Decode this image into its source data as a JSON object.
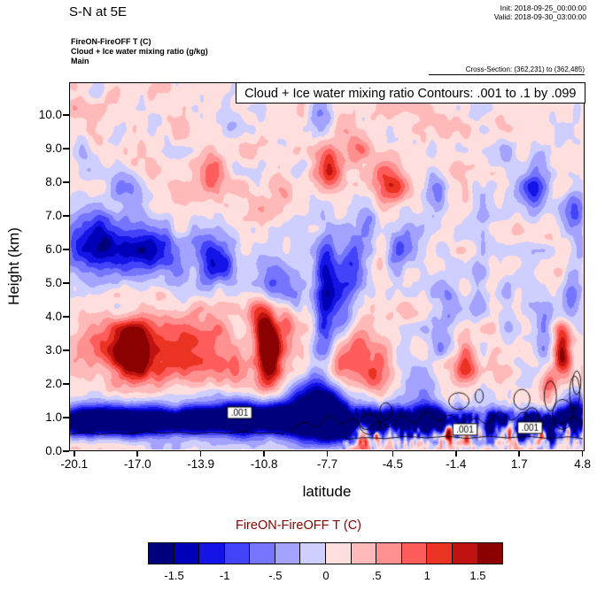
{
  "page_title": "S-N at 5E",
  "header": {
    "init": "Init: 2018-09-25_00:00:00",
    "valid": "Valid: 2018-09-30_03:00:00"
  },
  "subheader": {
    "line1": "FireON-FireOFF T   (C)",
    "line2": "Cloud + Ice water mixing ratio   (g/kg)",
    "line3": "Main",
    "cross_section": "Cross-Section: (362,231) to (362,485)"
  },
  "plot": {
    "inner_title": "Cloud + Ice water mixing ratio Contours: .001 to .1 by .099",
    "xlabel": "latitude",
    "ylabel": "Height (km)",
    "x_ticks": [
      "-20.1",
      "-17.0",
      "-13.9",
      "-10.8",
      "-7.7",
      "-4.5",
      "-1.4",
      "1.7",
      "4.8"
    ],
    "x_tick_values": [
      -20.1,
      -17.0,
      -13.9,
      -10.8,
      -7.7,
      -4.5,
      -1.4,
      1.7,
      4.8
    ],
    "y_ticks": [
      "0.0",
      "1.0",
      "2.0",
      "3.0",
      "4.0",
      "5.0",
      "6.0",
      "7.0",
      "8.0",
      "9.0",
      "10.0"
    ],
    "y_tick_values": [
      0,
      1,
      2,
      3,
      4,
      5,
      6,
      7,
      8,
      9,
      10
    ]
  },
  "colorbar": {
    "title": "FireON-FireOFF T  (C)",
    "title_color": "#8b0000",
    "labels": [
      "-1.5",
      "-1",
      "-.5",
      "0",
      ".5",
      "1",
      "1.5"
    ],
    "colors": [
      "#00007d",
      "#0000b8",
      "#1414e6",
      "#4343fa",
      "#7575ff",
      "#a3a3ff",
      "#cfcfff",
      "#ffdede",
      "#ffb9b9",
      "#ff9090",
      "#ff5c5c",
      "#ea3323",
      "#c11212",
      "#8b0000"
    ]
  },
  "chart_data": {
    "type": "heatmap",
    "title": "Cloud + Ice water mixing ratio Contours: .001 to .1 by .099",
    "subtitle": "FireON-FireOFF T (C) difference cross-section S-N at 5E",
    "xlabel": "latitude",
    "ylabel": "Height (km)",
    "x_range": [
      -20.35,
      4.9
    ],
    "y_range": [
      0,
      10.97
    ],
    "colorbar_title": "FireON-FireOFF T  (C)",
    "colorbar_ticks": [
      "-1.5",
      "-1",
      "-.5",
      "0",
      ".5",
      "1",
      "1.5"
    ],
    "levels": {
      "min": -1.75,
      "max": 1.75,
      "step": 0.25
    },
    "base": 0.15,
    "blobs": [
      [
        -19.8,
        0.85,
        -1.9,
        0.8,
        0.3
      ],
      [
        -18.6,
        0.8,
        -1.5,
        0.8,
        0.28
      ],
      [
        -17.2,
        0.85,
        -1.9,
        0.8,
        0.32
      ],
      [
        -15.8,
        0.8,
        -1.3,
        0.8,
        0.26
      ],
      [
        -14.4,
        0.85,
        -1.7,
        0.8,
        0.3
      ],
      [
        -13.0,
        0.9,
        -1.5,
        0.8,
        0.3
      ],
      [
        -11.6,
        0.95,
        -1.8,
        0.8,
        0.33
      ],
      [
        -10.2,
        0.9,
        -1.5,
        0.7,
        0.3
      ],
      [
        -9.0,
        0.9,
        -1.9,
        0.7,
        0.4
      ],
      [
        -8.2,
        1.3,
        -1.7,
        0.6,
        0.7
      ],
      [
        -7.5,
        0.9,
        -2.1,
        0.5,
        0.45
      ],
      [
        -6.8,
        0.7,
        -1.6,
        0.4,
        0.3
      ],
      [
        -6.0,
        0.9,
        -1.4,
        0.5,
        0.3
      ],
      [
        -5.2,
        0.8,
        -1.6,
        0.5,
        0.3
      ],
      [
        -4.3,
        0.9,
        -1.5,
        0.5,
        0.3
      ],
      [
        -3.4,
        0.85,
        -1.4,
        0.5,
        0.28
      ],
      [
        -2.5,
        0.9,
        -1.8,
        0.4,
        0.3
      ],
      [
        -1.6,
        0.85,
        -1.5,
        0.5,
        0.28
      ],
      [
        -0.7,
        0.9,
        -1.3,
        0.4,
        0.25
      ],
      [
        0.3,
        0.6,
        -1.9,
        0.2,
        0.25
      ],
      [
        0.8,
        0.95,
        -1.4,
        0.5,
        0.25
      ],
      [
        1.9,
        0.4,
        -1.7,
        0.15,
        0.2
      ],
      [
        2.2,
        0.85,
        -1.5,
        0.6,
        0.25
      ],
      [
        2.6,
        0.8,
        -1.6,
        0.2,
        0.2
      ],
      [
        3.3,
        0.5,
        -1.8,
        0.15,
        0.25
      ],
      [
        3.8,
        0.9,
        -1.7,
        0.6,
        0.3
      ],
      [
        4.4,
        0.8,
        -1.6,
        0.2,
        0.3
      ],
      [
        4.7,
        1.1,
        -1.2,
        0.3,
        0.4
      ],
      [
        -12.0,
        1.0,
        -0.5,
        8.0,
        0.55
      ],
      [
        -16.8,
        3.0,
        1.0,
        2.2,
        0.75
      ],
      [
        -17.3,
        2.9,
        1.3,
        0.6,
        0.5
      ],
      [
        -14.0,
        3.1,
        0.6,
        0.9,
        0.6
      ],
      [
        -12.6,
        2.4,
        0.5,
        0.6,
        0.5
      ],
      [
        -11.0,
        3.8,
        1.0,
        0.4,
        0.4
      ],
      [
        -10.6,
        2.7,
        1.3,
        0.45,
        0.7
      ],
      [
        -10.55,
        3.2,
        1.5,
        0.3,
        0.5
      ],
      [
        -9.7,
        3.8,
        0.8,
        0.35,
        0.45
      ],
      [
        -6.4,
        2.8,
        0.8,
        0.9,
        0.6
      ],
      [
        -5.3,
        2.1,
        0.6,
        0.5,
        0.4
      ],
      [
        -0.9,
        2.6,
        1.0,
        0.35,
        0.5
      ],
      [
        3.9,
        2.9,
        1.6,
        0.3,
        0.5
      ],
      [
        3.2,
        1.9,
        0.8,
        0.3,
        0.4
      ],
      [
        -18.9,
        6.1,
        -1.4,
        1.2,
        0.65
      ],
      [
        -16.4,
        5.9,
        -1.0,
        0.9,
        0.55
      ],
      [
        -16.5,
        6.0,
        -0.4,
        3.0,
        0.9
      ],
      [
        -13.1,
        5.7,
        -1.2,
        0.7,
        0.6
      ],
      [
        -10.4,
        5.0,
        -0.6,
        0.5,
        0.5
      ],
      [
        -9.3,
        4.6,
        -0.6,
        0.5,
        0.5
      ],
      [
        -7.7,
        5.1,
        -1.3,
        0.4,
        1.0
      ],
      [
        -7.9,
        3.6,
        -0.9,
        0.35,
        0.8
      ],
      [
        -6.9,
        4.1,
        -0.8,
        0.4,
        0.6
      ],
      [
        -6.5,
        5.6,
        -0.9,
        0.45,
        0.8
      ],
      [
        -5.7,
        6.6,
        -0.7,
        0.35,
        0.6
      ],
      [
        -4.3,
        5.8,
        -0.8,
        0.4,
        0.5
      ],
      [
        -3.6,
        6.3,
        -0.5,
        0.4,
        0.5
      ],
      [
        -3.0,
        2.2,
        -0.6,
        0.6,
        0.6
      ],
      [
        -2.2,
        3.4,
        -0.5,
        0.4,
        0.5
      ],
      [
        -1.8,
        4.3,
        -0.7,
        0.5,
        0.6
      ],
      [
        -0.2,
        4.8,
        -0.6,
        0.35,
        0.7
      ],
      [
        0.0,
        6.3,
        -0.5,
        0.4,
        0.6
      ],
      [
        1.2,
        3.8,
        -0.5,
        0.3,
        0.8
      ],
      [
        2.2,
        5.1,
        -0.4,
        0.3,
        0.6
      ],
      [
        3.0,
        3.6,
        -0.5,
        0.3,
        0.7
      ],
      [
        4.3,
        4.6,
        -0.6,
        0.3,
        0.6
      ],
      [
        4.7,
        5.8,
        -0.5,
        0.3,
        0.5
      ],
      [
        -19.6,
        8.6,
        -0.5,
        0.4,
        0.4
      ],
      [
        -17.8,
        7.9,
        -0.6,
        0.5,
        0.4
      ],
      [
        -13.3,
        8.3,
        0.8,
        0.45,
        0.45
      ],
      [
        -12.2,
        9.7,
        -0.4,
        0.5,
        0.4
      ],
      [
        -10.0,
        7.4,
        0.4,
        0.5,
        0.4
      ],
      [
        -8.0,
        9.8,
        -0.6,
        0.4,
        0.5
      ],
      [
        -7.6,
        8.4,
        1.1,
        0.5,
        0.45
      ],
      [
        -6.2,
        9.1,
        0.5,
        0.5,
        0.4
      ],
      [
        -4.6,
        8.0,
        0.9,
        0.6,
        0.5
      ],
      [
        -2.4,
        7.6,
        -0.8,
        0.45,
        0.5
      ],
      [
        1.0,
        8.9,
        -0.5,
        0.4,
        0.4
      ],
      [
        2.4,
        7.7,
        -1.2,
        0.55,
        0.6
      ],
      [
        4.5,
        7.3,
        -0.9,
        0.4,
        0.5
      ],
      [
        -5.9,
        0.5,
        2.0,
        0.18,
        0.25
      ],
      [
        -5.2,
        0.4,
        1.5,
        0.15,
        0.2
      ],
      [
        -4.5,
        0.6,
        1.4,
        0.12,
        0.2
      ],
      [
        -1.7,
        0.45,
        1.8,
        0.15,
        0.25
      ],
      [
        -0.8,
        0.35,
        1.2,
        0.1,
        0.15
      ],
      [
        0.1,
        0.4,
        1.0,
        0.1,
        0.15
      ],
      [
        1.3,
        0.5,
        1.5,
        0.12,
        0.2
      ],
      [
        2.8,
        0.45,
        1.3,
        0.1,
        0.15
      ],
      [
        4.2,
        0.5,
        1.5,
        0.12,
        0.2
      ]
    ],
    "noise": [
      {
        "amp": 0.26,
        "sx": 1.0,
        "sy": 0.6,
        "seed": 11
      },
      {
        "amp": 0.16,
        "sx": 0.42,
        "sy": 0.33,
        "seed": 29
      }
    ],
    "bottom_noise": {
      "amp": 0.85,
      "km_center": 0.5,
      "km_sigma": 0.42,
      "lat_min": -7.0,
      "sx": 0.16,
      "sy": 0.2,
      "seed": 47
    },
    "cloud_contours": {
      "polylines": [
        [
          [
            -20.35,
            0.45
          ],
          [
            -19.6,
            0.55
          ],
          [
            -18.9,
            0.42
          ],
          [
            -18.2,
            0.52
          ],
          [
            -17.4,
            0.44
          ],
          [
            -16.6,
            0.56
          ],
          [
            -15.8,
            0.46
          ],
          [
            -15.0,
            0.55
          ],
          [
            -14.2,
            0.44
          ],
          [
            -13.4,
            0.54
          ],
          [
            -12.6,
            0.46
          ],
          [
            -11.8,
            0.56
          ],
          [
            -11.0,
            0.46
          ],
          [
            -10.4,
            0.52
          ],
          [
            -9.8,
            0.45
          ]
        ],
        [
          [
            -9.5,
            0.55
          ],
          [
            -8.8,
            0.95
          ],
          [
            -8.2,
            0.55
          ],
          [
            -7.6,
            1.15
          ],
          [
            -7.0,
            0.65
          ],
          [
            -6.4,
            1.05
          ],
          [
            -5.8,
            0.45
          ],
          [
            -5.2,
            0.95
          ],
          [
            -4.6,
            0.55
          ],
          [
            -4.0,
            1.15
          ],
          [
            -3.4,
            0.65
          ],
          [
            -2.8,
            1.25
          ],
          [
            -2.2,
            0.75
          ],
          [
            -1.6,
            1.15
          ],
          [
            -1.0,
            0.55
          ],
          [
            -0.4,
            1.05
          ],
          [
            0.2,
            0.65
          ],
          [
            0.8,
            1.25
          ],
          [
            1.4,
            0.75
          ],
          [
            2.0,
            1.25
          ],
          [
            2.6,
            0.65
          ],
          [
            3.2,
            1.15
          ],
          [
            3.8,
            0.65
          ],
          [
            4.4,
            1.05
          ],
          [
            4.9,
            0.75
          ]
        ],
        [
          [
            -6.8,
            0.3
          ],
          [
            -5.8,
            0.38
          ],
          [
            -4.8,
            0.3
          ],
          [
            -3.8,
            0.42
          ],
          [
            -2.8,
            0.32
          ],
          [
            -1.8,
            0.42
          ],
          [
            -0.8,
            0.3
          ],
          [
            0.2,
            0.42
          ],
          [
            1.2,
            0.32
          ],
          [
            2.2,
            0.42
          ],
          [
            3.2,
            0.3
          ],
          [
            4.2,
            0.4
          ],
          [
            4.9,
            0.32
          ]
        ]
      ],
      "loops": [
        [
          -1.2,
          1.45,
          0.5,
          0.25
        ],
        [
          1.9,
          1.5,
          0.4,
          0.3
        ],
        [
          3.3,
          1.6,
          0.3,
          0.45
        ],
        [
          4.5,
          1.7,
          0.25,
          0.5
        ],
        [
          -0.2,
          1.6,
          0.2,
          0.2
        ],
        [
          2.4,
          0.95,
          0.35,
          0.3
        ],
        [
          -5.6,
          0.75,
          0.5,
          0.3
        ],
        [
          -4.8,
          1.15,
          0.3,
          0.25
        ],
        [
          3.9,
          1.05,
          0.5,
          0.45
        ],
        [
          4.6,
          2.0,
          0.2,
          0.35
        ]
      ],
      "labels": [
        {
          "lat": -12.0,
          "km": 1.1,
          "text": ".001"
        },
        {
          "lat": -0.9,
          "km": 0.6,
          "text": ".001"
        },
        {
          "lat": 2.3,
          "km": 0.65,
          "text": ".001"
        }
      ]
    }
  }
}
